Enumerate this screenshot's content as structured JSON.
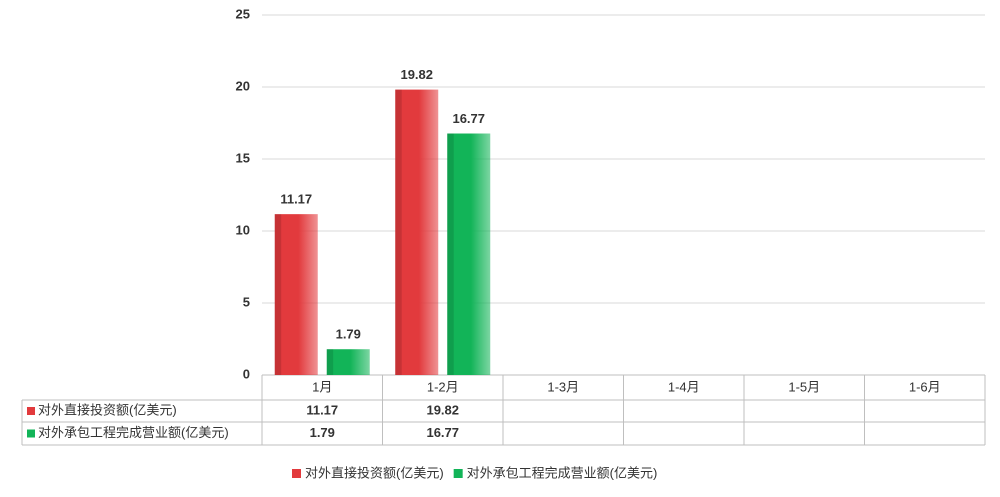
{
  "chart_data": {
    "type": "bar",
    "categories": [
      "1月",
      "1-2月",
      "1-3月",
      "1-4月",
      "1-5月",
      "1-6月"
    ],
    "series": [
      {
        "name": "对外直接投资额(亿美元)",
        "color": "#e23a3d",
        "values": [
          11.17,
          19.82,
          null,
          null,
          null,
          null
        ]
      },
      {
        "name": "对外承包工程完成营业额(亿美元)",
        "color": "#12b458",
        "values": [
          1.79,
          16.77,
          null,
          null,
          null,
          null
        ]
      }
    ],
    "ylim": [
      0,
      25
    ],
    "yticks": [
      0,
      5,
      10,
      15,
      20,
      25
    ],
    "grid": true,
    "legend": "bottom",
    "data_table": true
  }
}
